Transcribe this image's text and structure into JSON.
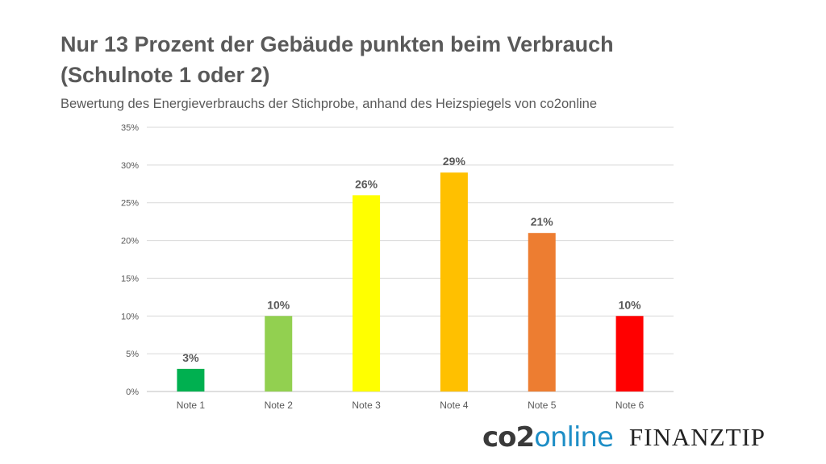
{
  "header": {
    "title": "Nur 13 Prozent der Gebäude punkten beim Verbrauch (Schulnote 1 oder 2)",
    "subtitle": "Bewertung des Energieverbrauchs der Stichprobe, anhand des Heizspiegels von co2online"
  },
  "chart_data": {
    "type": "bar",
    "categories": [
      "Note 1",
      "Note 2",
      "Note 3",
      "Note 4",
      "Note 5",
      "Note 6"
    ],
    "values": [
      3,
      10,
      26,
      29,
      21,
      10
    ],
    "data_labels": [
      "3%",
      "10%",
      "26%",
      "29%",
      "21%",
      "10%"
    ],
    "colors": [
      "#00b050",
      "#92d050",
      "#ffff00",
      "#ffc000",
      "#ed7d31",
      "#ff0000"
    ],
    "ylim": [
      0,
      35
    ],
    "yticks": [
      0,
      5,
      10,
      15,
      20,
      25,
      30,
      35
    ],
    "ytick_labels": [
      "0%",
      "5%",
      "10%",
      "15%",
      "20%",
      "25%",
      "30%",
      "35%"
    ],
    "grid": true,
    "title": "",
    "xlabel": "",
    "ylabel": ""
  },
  "logos": {
    "co2_part1": "co2",
    "co2_part2": "online",
    "finanztip": "FINANZTIP"
  }
}
